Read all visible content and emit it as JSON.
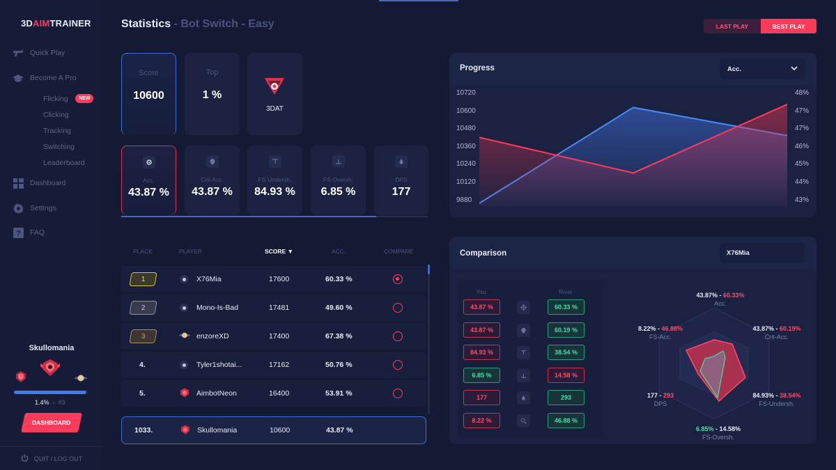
{
  "app": {
    "logo_pre": "3D",
    "logo_accent": "AIM",
    "logo_post": "TRAINER",
    "title": "Statistics",
    "title_sep": "-",
    "title_sub": "Bot Switch - Easy"
  },
  "header": {
    "last_play": "LAST PLAY",
    "best_play": "BEST PLAY"
  },
  "sidebar": {
    "nav": [
      {
        "label": "Quick Play",
        "icon": "crosshair-gun-icon"
      },
      {
        "label": "Become A Pro",
        "icon": "graduation-cap-icon"
      }
    ],
    "subnav": [
      "Flicking",
      "Clicking",
      "Tracking",
      "Switching",
      "Leaderboard"
    ],
    "new_badge": "NEW",
    "nav2": [
      {
        "label": "Dashboard",
        "icon": "grid-icon"
      },
      {
        "label": "Settings",
        "icon": "gear-icon"
      },
      {
        "label": "FAQ",
        "icon": "question-icon"
      }
    ],
    "profile": {
      "name": "Skullomania",
      "xp_fraction": 0.97,
      "xp_percent": "1.4%",
      "next": "#3"
    },
    "dashboard_btn": "DASHBOARD",
    "logout": "QUIT / LOG OUT"
  },
  "summary": {
    "score_label": "Score",
    "score": "10600",
    "top_label": "Top",
    "top": "1 %",
    "rank_label": "3DAT"
  },
  "stats": [
    {
      "label": "Acc.",
      "value": "43.87 %",
      "icon": "crosshair-icon"
    },
    {
      "label": "Crit-Acc.",
      "value": "43.87 %",
      "icon": "skull-icon"
    },
    {
      "label": "FS-Undersh.",
      "value": "84.93 %",
      "icon": "undershoot-icon"
    },
    {
      "label": "FS-Oversh.",
      "value": "6.85 %",
      "icon": "overshoot-icon"
    },
    {
      "label": "DPS",
      "value": "177",
      "icon": "drop-icon"
    }
  ],
  "leaderboard": {
    "headers": {
      "place": "PLACE",
      "player": "PLAYER",
      "score": "SCORE ▼",
      "acc": "ACC.",
      "compare": "COMPARE"
    },
    "rows": [
      {
        "place": "1",
        "player": "X76Mia",
        "score": "17600",
        "acc": "60.33 %"
      },
      {
        "place": "2",
        "player": "Mono-Is-Bad",
        "score": "17481",
        "acc": "49.60 %"
      },
      {
        "place": "3",
        "player": "enzoreXD",
        "score": "17400",
        "acc": "67.38 %"
      },
      {
        "place": "4.",
        "player": "Tyler1shotai...",
        "score": "17162",
        "acc": "50.76 %"
      },
      {
        "place": "5.",
        "player": "AimbotNeon",
        "score": "16400",
        "acc": "53.91 %"
      }
    ],
    "me": {
      "place": "1033.",
      "player": "Skullomania",
      "score": "10600",
      "acc": "43.87 %"
    }
  },
  "progress": {
    "title": "Progress",
    "select": "Acc.",
    "left_ticks": [
      "10720",
      "10600",
      "10480",
      "10360",
      "10240",
      "10120",
      "9880"
    ],
    "right_ticks": [
      "48%",
      "47%",
      "47%",
      "46%",
      "45%",
      "44%",
      "43%"
    ],
    "colors": {
      "score": "#4a8cf5",
      "acc": "#ff3b5c"
    }
  },
  "chart_data": {
    "type": "line",
    "x": [
      1,
      2,
      3
    ],
    "series": [
      {
        "values": [
          9900,
          10580,
          10380
        ],
        "axis": "left"
      },
      {
        "values": [
          45.9,
          44.4,
          47.3
        ],
        "axis": "right"
      }
    ],
    "ylim_left": [
      9880,
      10720
    ],
    "ylim_right": [
      43,
      48
    ],
    "grid": false
  },
  "comparison": {
    "title": "Comparison",
    "select": "X76Mia",
    "you_label": "You",
    "rival_label": "Rival",
    "rows": [
      {
        "you": "43.87 %",
        "you_color": "red",
        "rival": "60.33 %",
        "rival_color": "green",
        "icon": "crosshair-icon"
      },
      {
        "you": "43.87 %",
        "you_color": "red",
        "rival": "60.19 %",
        "rival_color": "green",
        "icon": "skull-icon"
      },
      {
        "you": "84.93 %",
        "you_color": "red",
        "rival": "38.54 %",
        "rival_color": "green",
        "icon": "undershoot-icon"
      },
      {
        "you": "6.85 %",
        "you_color": "green",
        "rival": "14.58 %",
        "rival_color": "red",
        "icon": "overshoot-icon"
      },
      {
        "you": "177",
        "you_color": "red",
        "rival": "293",
        "rival_color": "green",
        "icon": "drop-icon"
      },
      {
        "you": "8.22 %",
        "you_color": "red",
        "rival": "46.88 %",
        "rival_color": "green",
        "icon": "fs-acc-icon"
      }
    ],
    "radar": {
      "acc": {
        "you": "43.87% -",
        "rival": "60.33%",
        "name": "Acc."
      },
      "crit": {
        "you": "43.87% -",
        "rival": "60.19%",
        "name": "Crit-Acc."
      },
      "under": {
        "you": "84.93% -",
        "rival": "38.54%",
        "name": "FS-Undersh."
      },
      "over": {
        "you": "6.85%",
        "rival": "- 14.58%",
        "name": "FS-Oversh."
      },
      "dps": {
        "you": "177 -",
        "rival": "293",
        "name": "DPS"
      },
      "fsacc": {
        "you": "8.22% -",
        "rival": "46.88%",
        "name": "FS-Acc."
      }
    }
  }
}
